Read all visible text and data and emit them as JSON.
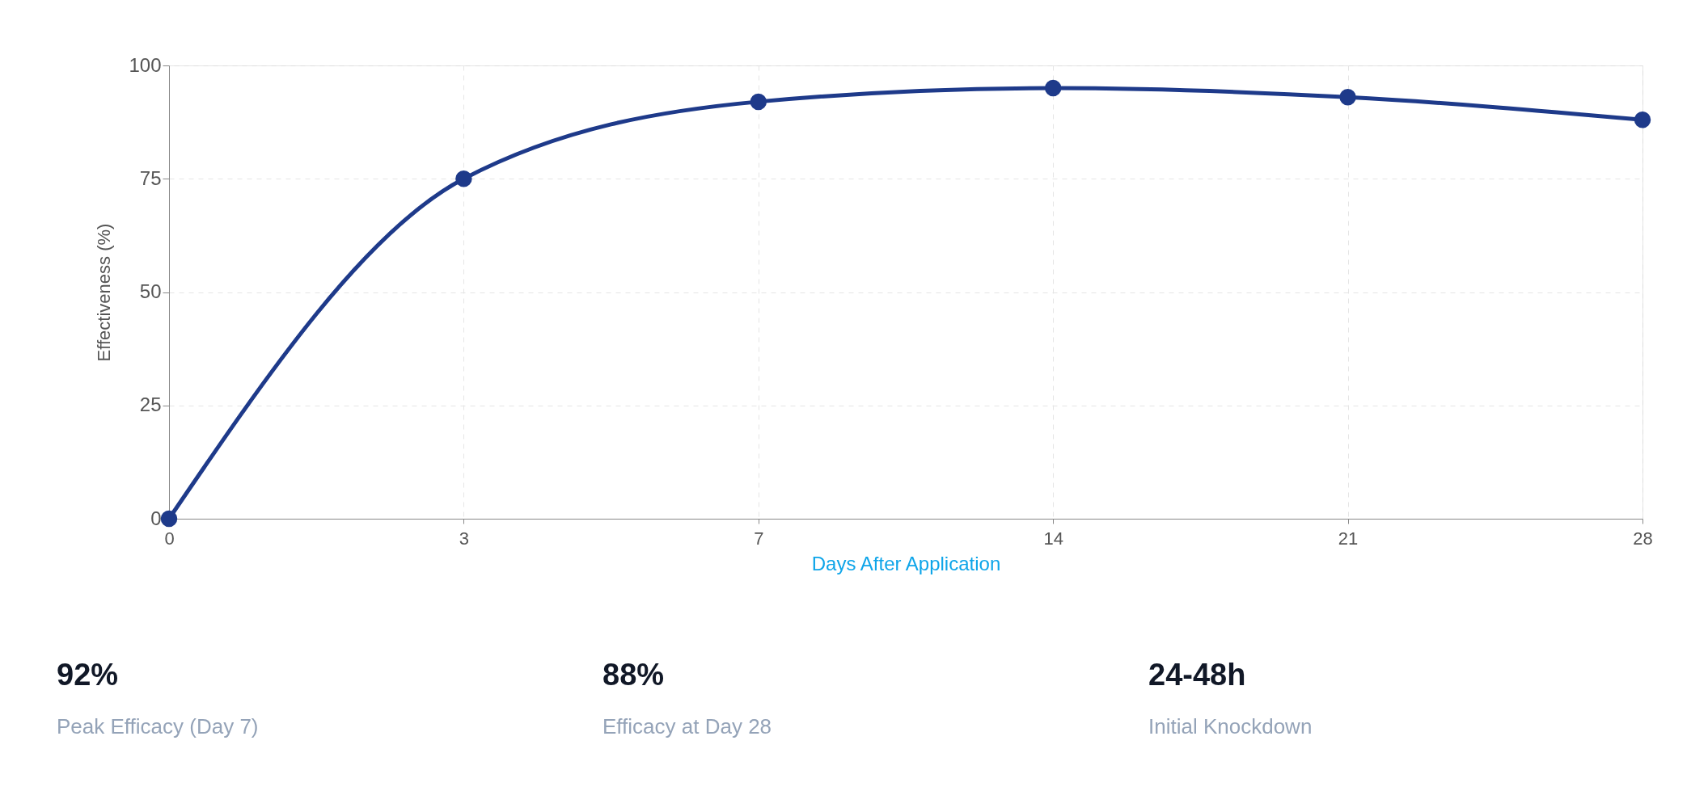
{
  "chart_data": {
    "type": "line",
    "xlabel": "Days After Application",
    "ylabel": "Effectiveness (%)",
    "categories": [
      "0",
      "3",
      "7",
      "14",
      "21",
      "28"
    ],
    "series": [
      {
        "color": "#1e3a8a",
        "values": [
          0,
          75,
          92,
          95,
          93,
          88
        ]
      }
    ],
    "ylim": [
      0,
      100
    ],
    "yticks": [
      0,
      25,
      50,
      75,
      100
    ],
    "grid": true,
    "marker": "circle",
    "line_style": "solid",
    "legend": false,
    "annotations": [
      "92%",
      "Peak Efficacy (Day 7)",
      "88%",
      "Efficacy at Day 28",
      "24-48h",
      "Initial Knockdown"
    ]
  }
}
